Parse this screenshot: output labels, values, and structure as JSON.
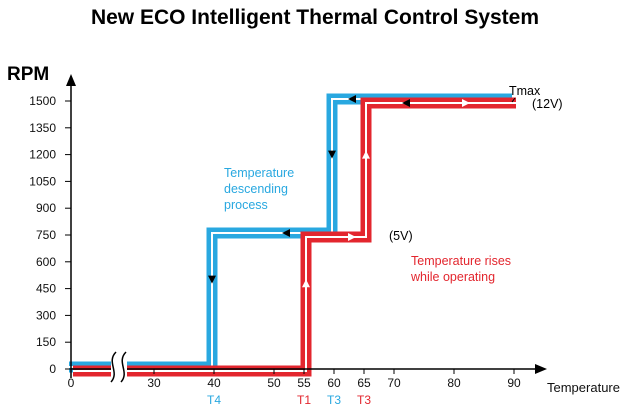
{
  "chart_data": {
    "type": "line",
    "title": "New ECO Intelligent Thermal Control System",
    "ylabel": "RPM",
    "xlabel": "Temperature",
    "yticks": [
      0,
      150,
      300,
      450,
      600,
      750,
      900,
      1050,
      1200,
      1350,
      1500
    ],
    "xticks": [
      0,
      30,
      40,
      50,
      55,
      60,
      65,
      70,
      80,
      90
    ],
    "xtick_labels": [
      "0",
      "30",
      "40",
      "50",
      "55",
      "60",
      "65",
      "70",
      "80",
      "90"
    ],
    "ylim": [
      0,
      1650
    ],
    "axis_break": "between 0 and 30",
    "temperature_markers": [
      {
        "label": "T4",
        "x": 40,
        "color": "#29a8e0"
      },
      {
        "label": "T1",
        "x": 55,
        "color": "#e3262e"
      },
      {
        "label": "T3",
        "x": 60,
        "color": "#29a8e0"
      },
      {
        "label": "T3",
        "x": 65,
        "color": "#e3262e"
      }
    ],
    "series": [
      {
        "color": "#29a8e0",
        "x": [
          0,
          40,
          40,
          60,
          60,
          90
        ],
        "y": [
          0,
          0,
          750,
          750,
          1500,
          1500
        ]
      },
      {
        "color": "#e3262e",
        "x": [
          0,
          55,
          55,
          65,
          65,
          90
        ],
        "y": [
          0,
          0,
          750,
          750,
          1500,
          1500
        ]
      }
    ],
    "annotations": [
      {
        "lines": [
          "Temperature",
          "descending",
          "process"
        ],
        "color": "#29a8e0"
      },
      {
        "lines": [
          "Temperature rises",
          "while operating"
        ],
        "color": "#e3262e"
      },
      {
        "text": "(5V)",
        "color": "#000000"
      },
      {
        "text": "Tmax",
        "color": "#000000"
      },
      {
        "text": "(12V)",
        "color": "#000000"
      }
    ],
    "grid": false
  }
}
